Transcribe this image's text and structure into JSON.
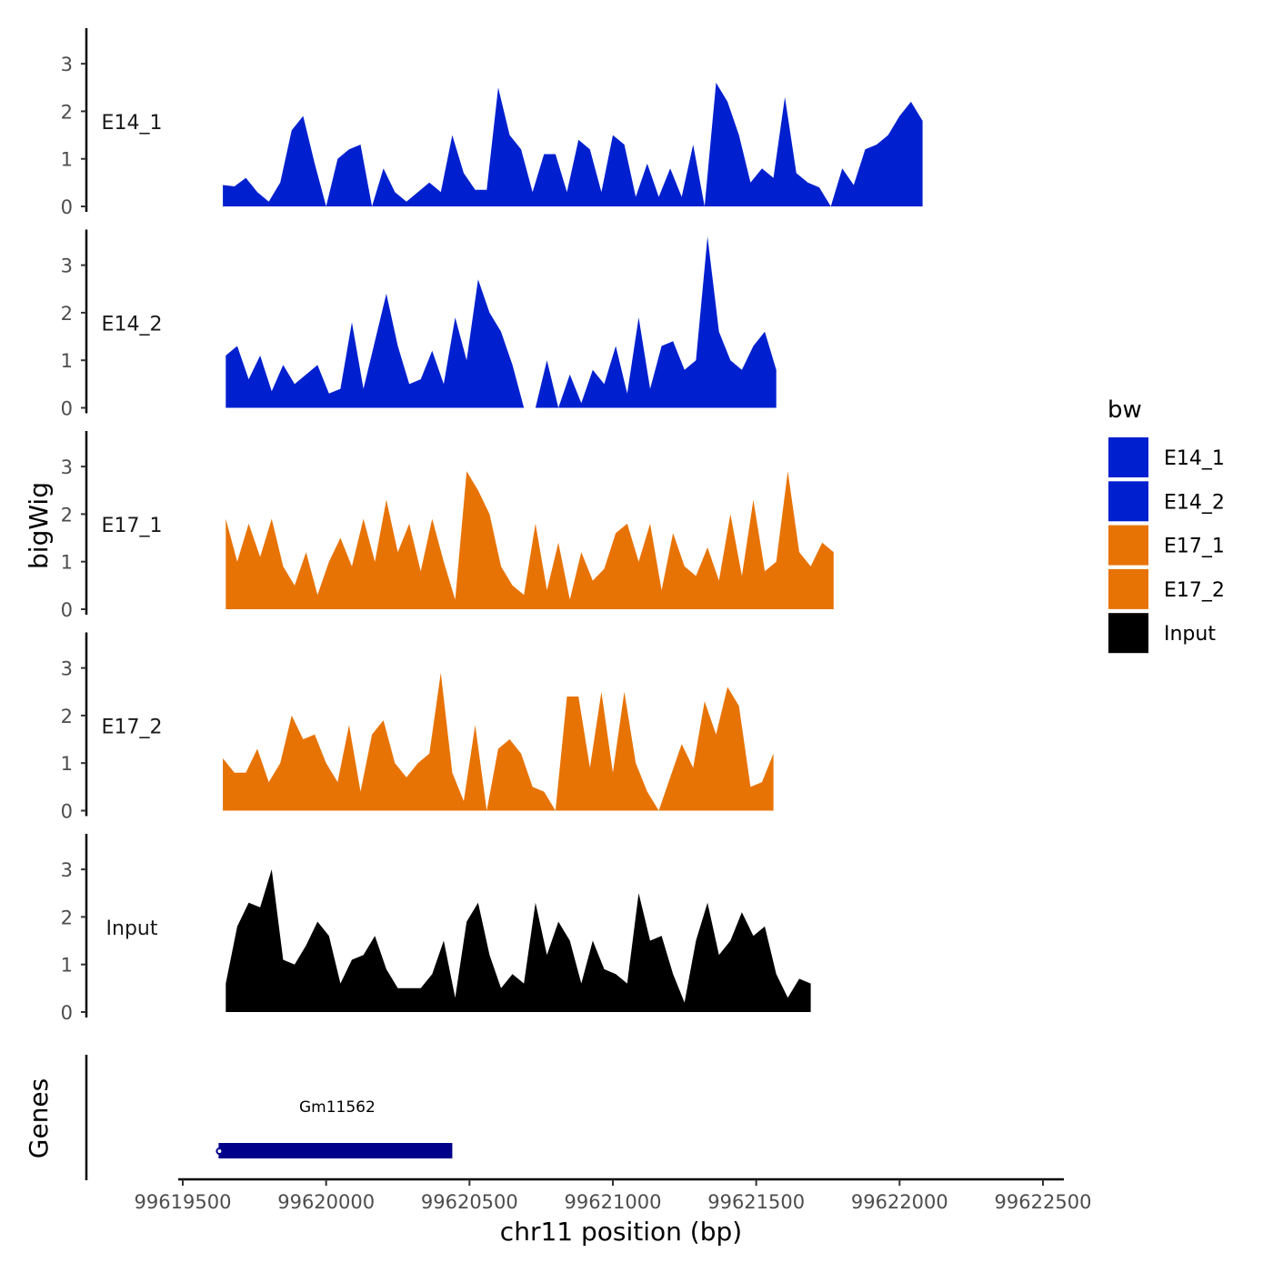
{
  "chart_data": {
    "type": "area",
    "xlabel": "chr11 position (bp)",
    "ylabel": "bigWig",
    "genes_label": "Genes",
    "x_range": [
      99619500,
      99622500
    ],
    "x_ticks": [
      99619500,
      99620000,
      99620500,
      99621000,
      99621500,
      99622000,
      99622500
    ],
    "x_tick_labels": [
      "99619500",
      "99620000",
      "99620500",
      "99621000",
      "99621500",
      "99622000",
      "99622500"
    ],
    "ylim": [
      0,
      3.7
    ],
    "y_ticks": [
      0,
      1,
      2,
      3
    ],
    "y_tick_labels": [
      "0",
      "1",
      "2",
      "3"
    ],
    "legend": {
      "title": "bw",
      "entries": [
        {
          "label": "E14_1",
          "color": "#0020d0"
        },
        {
          "label": "E14_2",
          "color": "#0020d0"
        },
        {
          "label": "E17_1",
          "color": "#e87305"
        },
        {
          "label": "E17_2",
          "color": "#e87305"
        },
        {
          "label": "Input",
          "color": "#000000"
        }
      ]
    },
    "series": [
      {
        "name": "E14_1",
        "label": "E14_1",
        "color": "#0020d0",
        "start": 99619640,
        "step": 40,
        "values": [
          0.45,
          0.42,
          0.6,
          0.3,
          0.1,
          0.5,
          1.6,
          1.9,
          0.9,
          0.0,
          1.0,
          1.2,
          1.3,
          0.0,
          0.8,
          0.3,
          0.1,
          0.3,
          0.5,
          0.3,
          1.5,
          0.7,
          0.35,
          0.35,
          2.5,
          1.5,
          1.2,
          0.3,
          1.1,
          1.1,
          0.3,
          1.4,
          1.2,
          0.3,
          1.5,
          1.3,
          0.2,
          0.9,
          0.2,
          0.8,
          0.2,
          1.3,
          0.0,
          2.6,
          2.2,
          1.5,
          0.5,
          0.8,
          0.6,
          2.3,
          0.7,
          0.5,
          0.4,
          0.0,
          0.8,
          0.45,
          1.2,
          1.3,
          1.5,
          1.9,
          2.2,
          1.8
        ]
      },
      {
        "name": "E14_2",
        "label": "E14_2",
        "color": "#0020d0",
        "start": 99619650,
        "step": 40,
        "values": [
          1.1,
          1.3,
          0.6,
          1.1,
          0.35,
          0.9,
          0.5,
          0.7,
          0.9,
          0.3,
          0.4,
          1.8,
          0.4,
          1.4,
          2.4,
          1.3,
          0.5,
          0.6,
          1.2,
          0.5,
          1.9,
          1.0,
          2.7,
          2.0,
          1.6,
          0.9,
          0.0,
          0.0,
          1.0,
          0.0,
          0.7,
          0.1,
          0.8,
          0.5,
          1.3,
          0.3,
          1.9,
          0.4,
          1.3,
          1.4,
          0.8,
          1.0,
          3.6,
          1.6,
          1.0,
          0.8,
          1.3,
          1.6,
          0.8
        ]
      },
      {
        "name": "E17_1",
        "label": "E17_1",
        "color": "#e87305",
        "start": 99619650,
        "step": 40,
        "values": [
          1.9,
          1.0,
          1.8,
          1.1,
          1.9,
          0.9,
          0.5,
          1.2,
          0.3,
          1.0,
          1.5,
          0.9,
          1.9,
          1.0,
          2.3,
          1.2,
          1.8,
          0.8,
          1.9,
          1.0,
          0.2,
          2.9,
          2.5,
          2.0,
          0.9,
          0.5,
          0.3,
          1.8,
          0.4,
          1.4,
          0.2,
          1.2,
          0.6,
          0.85,
          1.6,
          1.8,
          1.0,
          1.8,
          0.4,
          1.6,
          0.9,
          0.7,
          1.3,
          0.6,
          2.0,
          0.7,
          2.3,
          0.8,
          1.0,
          2.9,
          1.2,
          0.9,
          1.4,
          1.2
        ]
      },
      {
        "name": "E17_2",
        "label": "E17_2",
        "color": "#e87305",
        "start": 99619640,
        "step": 40,
        "values": [
          1.1,
          0.8,
          0.8,
          1.3,
          0.6,
          1.0,
          2.0,
          1.5,
          1.6,
          1.0,
          0.6,
          1.8,
          0.4,
          1.6,
          1.9,
          1.0,
          0.7,
          1.0,
          1.2,
          2.9,
          0.8,
          0.2,
          1.8,
          0.0,
          1.3,
          1.5,
          1.2,
          0.5,
          0.4,
          0.0,
          2.4,
          2.4,
          0.9,
          2.5,
          0.8,
          2.5,
          1.0,
          0.4,
          0.0,
          0.7,
          1.4,
          0.9,
          2.3,
          1.6,
          2.6,
          2.2,
          0.5,
          0.6,
          1.2
        ]
      },
      {
        "name": "Input",
        "label": "Input",
        "color": "#000000",
        "start": 99619650,
        "step": 40,
        "values": [
          0.6,
          1.8,
          2.3,
          2.2,
          3.0,
          1.1,
          1.0,
          1.4,
          1.9,
          1.6,
          0.6,
          1.1,
          1.2,
          1.6,
          0.9,
          0.5,
          0.5,
          0.5,
          0.8,
          1.5,
          0.3,
          1.9,
          2.3,
          1.2,
          0.5,
          0.8,
          0.6,
          2.3,
          1.2,
          1.9,
          1.5,
          0.6,
          1.5,
          0.9,
          0.8,
          0.6,
          2.5,
          1.5,
          1.6,
          0.8,
          0.2,
          1.5,
          2.3,
          1.2,
          1.5,
          2.1,
          1.6,
          1.8,
          0.8,
          0.3,
          0.7,
          0.6
        ]
      }
    ],
    "genes": [
      {
        "name": "Gm11562",
        "start": 99619625,
        "end": 99620440,
        "color": "#00008b"
      }
    ]
  }
}
